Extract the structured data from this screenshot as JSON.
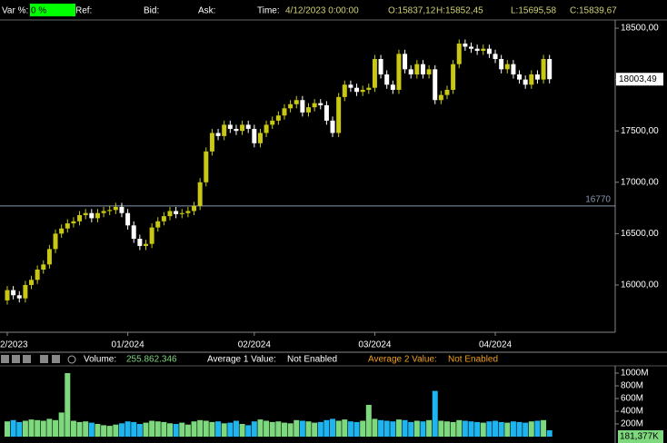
{
  "header": {
    "var_label": "Var %:",
    "var_value": "0 %",
    "ref_label": "Ref:",
    "bid_label": "Bid:",
    "ask_label": "Ask:",
    "time_label": "Time:",
    "time_value": "4/12/2023 0:00:00",
    "open": "O:15837,12",
    "high": "H:15852,45",
    "low": "L:15695,58",
    "close": "C:15839,67"
  },
  "chart_data": {
    "type": "candlestick",
    "categories": [
      "2/2023",
      null,
      null,
      null,
      null,
      null,
      null,
      null,
      null,
      null,
      null,
      null,
      null,
      null,
      null,
      null,
      null,
      null,
      null,
      null,
      "01/2024",
      null,
      null,
      null,
      null,
      null,
      null,
      null,
      null,
      null,
      null,
      null,
      null,
      null,
      null,
      null,
      null,
      null,
      null,
      null,
      null,
      "02/2024",
      null,
      null,
      null,
      null,
      null,
      null,
      null,
      null,
      null,
      null,
      null,
      null,
      null,
      null,
      null,
      null,
      null,
      null,
      null,
      "03/2024",
      null,
      null,
      null,
      null,
      null,
      null,
      null,
      null,
      null,
      null,
      null,
      null,
      null,
      null,
      null,
      null,
      null,
      null,
      null,
      "04/2024",
      null,
      null,
      null,
      null,
      null,
      null,
      null,
      null,
      null
    ],
    "open": [
      15850,
      15950,
      15900,
      15870,
      16000,
      16050,
      16150,
      16200,
      16350,
      16500,
      16550,
      16600,
      16620,
      16680,
      16700,
      16650,
      16700,
      16720,
      16730,
      16760,
      16700,
      16580,
      16450,
      16380,
      16400,
      16560,
      16620,
      16670,
      16720,
      16690,
      16700,
      16720,
      16770,
      17000,
      17300,
      17480,
      17450,
      17560,
      17520,
      17500,
      17560,
      17520,
      17380,
      17480,
      17560,
      17600,
      17650,
      17720,
      17760,
      17800,
      17680,
      17730,
      17770,
      17750,
      17600,
      17480,
      17830,
      17950,
      17920,
      17880,
      17900,
      17920,
      18200,
      18050,
      17950,
      17900,
      18250,
      18100,
      18050,
      18150,
      18050,
      18100,
      17800,
      17850,
      17900,
      18150,
      18350,
      18320,
      18300,
      18280,
      18300,
      18250,
      18200,
      18100,
      18150,
      18050,
      18000,
      17950,
      18050,
      18000,
      18200
    ],
    "high": [
      15990,
      15990,
      15940,
      16040,
      16090,
      16190,
      16240,
      16390,
      16540,
      16590,
      16640,
      16660,
      16720,
      16740,
      16740,
      16740,
      16760,
      16770,
      16800,
      16800,
      16740,
      16620,
      16490,
      16440,
      16600,
      16660,
      16710,
      16760,
      16760,
      16740,
      16760,
      16810,
      17040,
      17340,
      17520,
      17520,
      17600,
      17600,
      17560,
      17600,
      17600,
      17560,
      17520,
      17600,
      17640,
      17690,
      17760,
      17800,
      17840,
      17840,
      17770,
      17810,
      17810,
      17790,
      17640,
      17870,
      17990,
      17990,
      17960,
      17940,
      17960,
      18240,
      18240,
      18090,
      17990,
      18290,
      18290,
      18140,
      18190,
      18190,
      18140,
      18140,
      17890,
      17940,
      18190,
      18390,
      18390,
      18360,
      18340,
      18340,
      18340,
      18290,
      18240,
      18190,
      18190,
      18090,
      18040,
      18090,
      18090,
      18240,
      18240
    ],
    "low": [
      15810,
      15860,
      15830,
      15830,
      15960,
      16010,
      16110,
      16160,
      16310,
      16460,
      16510,
      16560,
      16580,
      16640,
      16610,
      16610,
      16660,
      16680,
      16690,
      16660,
      16540,
      16410,
      16340,
      16340,
      16360,
      16520,
      16580,
      16630,
      16650,
      16650,
      16660,
      16680,
      16730,
      16960,
      17260,
      17410,
      17410,
      17480,
      17460,
      17460,
      17480,
      17340,
      17340,
      17440,
      17520,
      17560,
      17610,
      17680,
      17720,
      17640,
      17640,
      17690,
      17710,
      17560,
      17440,
      17440,
      17790,
      17880,
      17840,
      17840,
      17860,
      17880,
      18010,
      17910,
      17860,
      17860,
      18060,
      18010,
      18010,
      18010,
      18010,
      17760,
      17760,
      17810,
      17860,
      18110,
      18280,
      18260,
      18240,
      18240,
      18210,
      18160,
      18060,
      18060,
      18010,
      17960,
      17910,
      17910,
      17960,
      17960,
      17963
    ],
    "close": [
      15950,
      15900,
      15870,
      16000,
      16050,
      16150,
      16200,
      16350,
      16500,
      16550,
      16600,
      16620,
      16680,
      16700,
      16650,
      16700,
      16720,
      16730,
      16760,
      16700,
      16580,
      16450,
      16380,
      16400,
      16560,
      16620,
      16670,
      16720,
      16690,
      16700,
      16720,
      16770,
      17000,
      17300,
      17480,
      17450,
      17560,
      17520,
      17500,
      17560,
      17520,
      17380,
      17480,
      17560,
      17600,
      17650,
      17720,
      17760,
      17800,
      17680,
      17730,
      17770,
      17750,
      17600,
      17480,
      17830,
      17950,
      17920,
      17880,
      17900,
      17920,
      18200,
      18050,
      17950,
      17900,
      18250,
      18100,
      18050,
      18150,
      18050,
      18100,
      17800,
      17850,
      17900,
      18150,
      18350,
      18320,
      18300,
      18280,
      18300,
      18250,
      18200,
      18100,
      18150,
      18050,
      18000,
      17950,
      18050,
      18000,
      18200,
      18003.49
    ],
    "up_color": "#c8c814",
    "down_color": "#ffffff",
    "ylim": [
      15540,
      18580
    ],
    "yticks": [
      {
        "value": 16000,
        "label": "16000,00"
      },
      {
        "value": 16500,
        "label": "16500,00"
      },
      {
        "value": 17000,
        "label": "17000,00"
      },
      {
        "value": 17500,
        "label": "17500,00"
      },
      {
        "value": 18000,
        "label": "18000,00"
      },
      {
        "value": 18500,
        "label": "18500,00"
      }
    ],
    "last_price_label": "18003,49",
    "reference_line": 16770,
    "volume": {
      "toolbar_label": "Volume:",
      "toolbar_value": "255.862.346",
      "avg1_label": "Average 1 Value:",
      "avg1_value": "Not Enabled",
      "avg2_label": "Average 2 Value:",
      "avg2_value": "Not Enabled",
      "current_label": "181,377K",
      "values": [
        240,
        260,
        230,
        250,
        270,
        260,
        250,
        280,
        260,
        380,
        1000,
        250,
        230,
        240,
        220,
        200,
        180,
        170,
        190,
        210,
        240,
        230,
        200,
        220,
        250,
        240,
        230,
        210,
        200,
        220,
        190,
        240,
        260,
        250,
        230,
        240,
        210,
        220,
        250,
        200,
        180,
        240,
        270,
        250,
        230,
        240,
        220,
        210,
        260,
        250,
        240,
        220,
        230,
        260,
        280,
        250,
        270,
        240,
        230,
        250,
        500,
        280,
        260,
        250,
        240,
        270,
        260,
        230,
        250,
        240,
        260,
        720,
        250,
        240,
        230,
        260,
        250,
        240,
        230,
        220,
        240,
        250,
        230,
        220,
        240,
        230,
        220,
        240,
        250,
        260,
        100
      ],
      "up_color": "#7ed87e",
      "down_color": "#1eb4f0",
      "ylim": [
        0,
        1086
      ],
      "yticks": [
        {
          "value": 200,
          "label": "200M"
        },
        {
          "value": 400,
          "label": "400M"
        },
        {
          "value": 600,
          "label": "600M"
        },
        {
          "value": 800,
          "label": "800M"
        },
        {
          "value": 1000,
          "label": "1000M"
        }
      ]
    }
  }
}
